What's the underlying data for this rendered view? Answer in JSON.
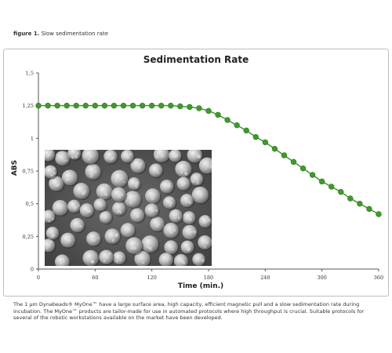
{
  "figure": {
    "label": "figure 1.",
    "caption": "Slow sedimentation rate"
  },
  "chart_data": {
    "type": "line",
    "title": "Sedimentation Rate",
    "xlabel": "Time (min.)",
    "ylabel": "ABS",
    "xlim": [
      0,
      360
    ],
    "ylim": [
      0,
      1.5
    ],
    "x_ticks": [
      "0",
      "60",
      "120",
      "180",
      "240",
      "300",
      "360"
    ],
    "y_ticks": [
      "0",
      "0,25",
      "0,5",
      "0,75",
      "1",
      "1,25",
      "1,5"
    ],
    "grid": false,
    "marker_color": "#3f9a2c",
    "series": [
      {
        "x": [
          0,
          10,
          20,
          30,
          40,
          50,
          60,
          70,
          80,
          90,
          100,
          110,
          120,
          130,
          140,
          150,
          160,
          170,
          180,
          190,
          200,
          210,
          220,
          230,
          240,
          250,
          260,
          270,
          280,
          290,
          300,
          310,
          320,
          330,
          340,
          350,
          360
        ],
        "values": [
          1.25,
          1.25,
          1.25,
          1.25,
          1.25,
          1.25,
          1.25,
          1.25,
          1.25,
          1.25,
          1.25,
          1.25,
          1.25,
          1.25,
          1.25,
          1.245,
          1.24,
          1.23,
          1.21,
          1.18,
          1.14,
          1.1,
          1.06,
          1.01,
          0.97,
          0.92,
          0.87,
          0.82,
          0.77,
          0.72,
          0.67,
          0.63,
          0.59,
          0.54,
          0.5,
          0.46,
          0.42
        ]
      }
    ]
  },
  "description": {
    "text": "The 1 µm Dynabeads® MyOne™ have a large surface area, high capacity, efficient magnetic pull and a slow sedimentation rate during incubation. The MyOne™ products are tailor-made for use in automated protocols where high throughput is crucial. Suitable protocols for several of the robotic workstations available on the market have been developed."
  }
}
